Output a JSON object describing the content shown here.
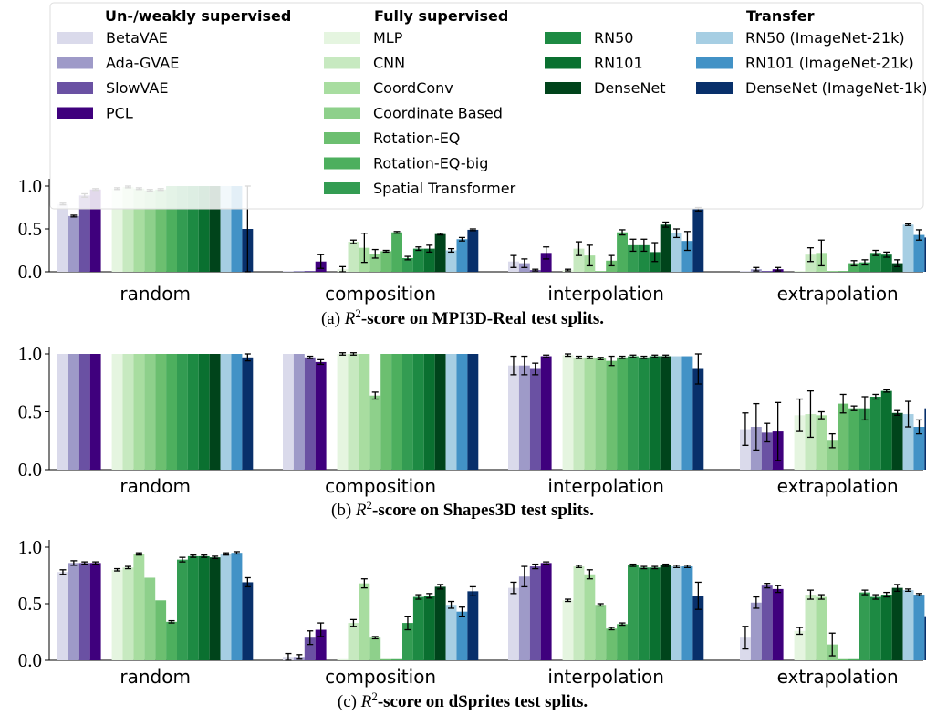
{
  "legend": {
    "groups": [
      {
        "title": "Un-/weakly supervised",
        "entries": [
          {
            "name": "BetaVAE",
            "color": "#dadaeb"
          },
          {
            "name": "Ada-GVAE",
            "color": "#9e9ac8"
          },
          {
            "name": "SlowVAE",
            "color": "#6a51a3"
          },
          {
            "name": "PCL",
            "color": "#3f007d"
          }
        ]
      },
      {
        "title": "Fully supervised",
        "entries": [
          {
            "name": "MLP",
            "color": "#e5f5e0"
          },
          {
            "name": "CNN",
            "color": "#c7e9c0"
          },
          {
            "name": "CoordConv",
            "color": "#a8dda0"
          },
          {
            "name": "Coordinate Based",
            "color": "#8ed08b"
          },
          {
            "name": "Rotation-EQ",
            "color": "#6cbf70"
          },
          {
            "name": "Rotation-EQ-big",
            "color": "#4daf5e"
          },
          {
            "name": "Spatial Transformer",
            "color": "#339c52"
          },
          {
            "name": "RN50",
            "color": "#1d8a43"
          },
          {
            "name": "RN101",
            "color": "#0a7030"
          },
          {
            "name": "DenseNet",
            "color": "#00441b"
          }
        ]
      },
      {
        "title": "Transfer",
        "entries": [
          {
            "name": "RN50 (ImageNet-21k)",
            "color": "#a6cee3"
          },
          {
            "name": "RN101 (ImageNet-21k)",
            "color": "#4292c6"
          },
          {
            "name": "DenseNet (ImageNet-1k)",
            "color": "#08306b"
          }
        ]
      }
    ]
  },
  "chart_data": [
    {
      "type": "bar",
      "title": "(a) R²-score on MPI3D-Real test splits.",
      "caption_prefix": "(a) ",
      "caption_bold": "-score on MPI3D-Real test splits.",
      "ylim": [
        0,
        1.0
      ],
      "yticks": [
        "0.0",
        "0.5",
        "1.0"
      ],
      "categories": [
        "random",
        "composition",
        "interpolation",
        "extrapolation"
      ],
      "series_values": [
        [
          0.79,
          0.01,
          0.12,
          0.01
        ],
        [
          0.65,
          0.01,
          0.1,
          0.03
        ],
        [
          0.89,
          0.01,
          0.02,
          0.01
        ],
        [
          0.96,
          0.12,
          0.22,
          0.03
        ],
        [
          0.97,
          0.03,
          0.02,
          0.01
        ],
        [
          0.99,
          0.35,
          0.27,
          0.2
        ],
        [
          0.97,
          0.28,
          0.19,
          0.22
        ],
        [
          0.95,
          0.21,
          0.01,
          0.01
        ],
        [
          0.96,
          0.24,
          0.13,
          0.01
        ],
        [
          1.0,
          0.46,
          0.46,
          0.1
        ],
        [
          1.0,
          0.16,
          0.31,
          0.11
        ],
        [
          1.0,
          0.27,
          0.31,
          0.22
        ],
        [
          1.0,
          0.27,
          0.23,
          0.2
        ],
        [
          1.0,
          0.44,
          0.55,
          0.1
        ],
        [
          1.0,
          0.25,
          0.45,
          0.55
        ],
        [
          1.0,
          0.38,
          0.36,
          0.43
        ],
        [
          0.5,
          0.49,
          0.73,
          0.4
        ]
      ],
      "series_errors": [
        [
          0.01,
          0.0,
          0.07,
          0.0
        ],
        [
          0.01,
          0.0,
          0.05,
          0.02
        ],
        [
          0.02,
          0.0,
          0.01,
          0.0
        ],
        [
          0.01,
          0.08,
          0.07,
          0.02
        ],
        [
          0.01,
          0.03,
          0.01,
          0.0
        ],
        [
          0.01,
          0.02,
          0.08,
          0.08
        ],
        [
          0.01,
          0.17,
          0.12,
          0.15
        ],
        [
          0.01,
          0.05,
          0.0,
          0.0
        ],
        [
          0.01,
          0.01,
          0.06,
          0.0
        ],
        [
          0.0,
          0.01,
          0.03,
          0.03
        ],
        [
          0.0,
          0.02,
          0.07,
          0.03
        ],
        [
          0.0,
          0.02,
          0.07,
          0.03
        ],
        [
          0.0,
          0.04,
          0.11,
          0.03
        ],
        [
          0.0,
          0.01,
          0.03,
          0.04
        ],
        [
          0.0,
          0.02,
          0.05,
          0.01
        ],
        [
          0.0,
          0.02,
          0.11,
          0.06
        ],
        [
          0.5,
          0.01,
          0.02,
          0.01
        ]
      ]
    },
    {
      "type": "bar",
      "title": "(b) R²-score on Shapes3D test splits.",
      "caption_prefix": "(b) ",
      "caption_bold": "-score on Shapes3D test splits.",
      "ylim": [
        0,
        1.0
      ],
      "yticks": [
        "0.0",
        "0.5",
        "1.0"
      ],
      "categories": [
        "random",
        "composition",
        "interpolation",
        "extrapolation"
      ],
      "series_values": [
        [
          1.0,
          1.0,
          0.9,
          0.35
        ],
        [
          1.0,
          1.0,
          0.9,
          0.37
        ],
        [
          1.0,
          0.97,
          0.87,
          0.32
        ],
        [
          1.0,
          0.93,
          0.98,
          0.33
        ],
        [
          1.0,
          1.0,
          0.99,
          0.47
        ],
        [
          1.0,
          1.0,
          0.97,
          0.48
        ],
        [
          1.0,
          1.0,
          0.97,
          0.47
        ],
        [
          1.0,
          0.64,
          0.96,
          0.25
        ],
        [
          1.0,
          1.0,
          0.94,
          0.57
        ],
        [
          1.0,
          1.0,
          0.97,
          0.53
        ],
        [
          1.0,
          1.0,
          0.98,
          0.53
        ],
        [
          1.0,
          1.0,
          0.97,
          0.63
        ],
        [
          1.0,
          1.0,
          0.98,
          0.68
        ],
        [
          1.0,
          1.0,
          0.98,
          0.49
        ],
        [
          1.0,
          1.0,
          0.98,
          0.48
        ],
        [
          1.0,
          1.0,
          0.98,
          0.37
        ],
        [
          0.97,
          1.0,
          0.87,
          0.53
        ]
      ],
      "series_errors": [
        [
          0.0,
          0.0,
          0.08,
          0.14
        ],
        [
          0.0,
          0.0,
          0.08,
          0.2
        ],
        [
          0.0,
          0.01,
          0.05,
          0.08
        ],
        [
          0.0,
          0.02,
          0.01,
          0.25
        ],
        [
          0.0,
          0.01,
          0.01,
          0.14
        ],
        [
          0.0,
          0.01,
          0.01,
          0.2
        ],
        [
          0.0,
          0.0,
          0.01,
          0.03
        ],
        [
          0.0,
          0.03,
          0.01,
          0.06
        ],
        [
          0.0,
          0.0,
          0.04,
          0.08
        ],
        [
          0.0,
          0.0,
          0.01,
          0.02
        ],
        [
          0.0,
          0.0,
          0.01,
          0.1
        ],
        [
          0.0,
          0.0,
          0.01,
          0.02
        ],
        [
          0.0,
          0.0,
          0.01,
          0.01
        ],
        [
          0.0,
          0.0,
          0.01,
          0.02
        ],
        [
          0.0,
          0.0,
          0.0,
          0.11
        ],
        [
          0.0,
          0.0,
          0.0,
          0.06
        ],
        [
          0.03,
          0.0,
          0.13,
          0.16
        ]
      ]
    },
    {
      "type": "bar",
      "title": "(c) R²-score on dSprites test splits.",
      "caption_prefix": "(c) ",
      "caption_bold": "-score on dSprites test splits.",
      "ylim": [
        0,
        1.0
      ],
      "yticks": [
        "0.0",
        "0.5",
        "1.0"
      ],
      "categories": [
        "random",
        "composition",
        "interpolation",
        "extrapolation"
      ],
      "series_values": [
        [
          0.78,
          0.03,
          0.64,
          0.2
        ],
        [
          0.86,
          0.03,
          0.74,
          0.51
        ],
        [
          0.86,
          0.2,
          0.83,
          0.66
        ],
        [
          0.86,
          0.27,
          0.86,
          0.63
        ],
        [
          0.8,
          0.01,
          0.53,
          0.26
        ],
        [
          0.82,
          0.33,
          0.83,
          0.58
        ],
        [
          0.94,
          0.68,
          0.76,
          0.56
        ],
        [
          0.73,
          0.2,
          0.49,
          0.14
        ],
        [
          0.53,
          0.01,
          0.28,
          0.01
        ],
        [
          0.34,
          0.01,
          0.32,
          0.01
        ],
        [
          0.89,
          0.33,
          0.84,
          0.6
        ],
        [
          0.92,
          0.56,
          0.82,
          0.56
        ],
        [
          0.92,
          0.57,
          0.82,
          0.58
        ],
        [
          0.91,
          0.65,
          0.84,
          0.64
        ],
        [
          0.94,
          0.49,
          0.83,
          0.62
        ],
        [
          0.95,
          0.43,
          0.83,
          0.58
        ],
        [
          0.69,
          0.61,
          0.57,
          0.39
        ]
      ],
      "series_errors": [
        [
          0.02,
          0.03,
          0.05,
          0.1
        ],
        [
          0.02,
          0.02,
          0.09,
          0.05
        ],
        [
          0.01,
          0.06,
          0.02,
          0.02
        ],
        [
          0.01,
          0.06,
          0.01,
          0.03
        ],
        [
          0.01,
          0.0,
          0.01,
          0.03
        ],
        [
          0.01,
          0.03,
          0.01,
          0.04
        ],
        [
          0.01,
          0.04,
          0.04,
          0.02
        ],
        [
          0.0,
          0.01,
          0.01,
          0.1
        ],
        [
          0.0,
          0.0,
          0.01,
          0.0
        ],
        [
          0.01,
          0.0,
          0.01,
          0.0
        ],
        [
          0.02,
          0.06,
          0.01,
          0.02
        ],
        [
          0.01,
          0.02,
          0.01,
          0.02
        ],
        [
          0.01,
          0.02,
          0.01,
          0.02
        ],
        [
          0.01,
          0.02,
          0.01,
          0.03
        ],
        [
          0.01,
          0.03,
          0.01,
          0.01
        ],
        [
          0.01,
          0.04,
          0.01,
          0.01
        ],
        [
          0.04,
          0.04,
          0.12,
          0.14
        ]
      ]
    }
  ]
}
